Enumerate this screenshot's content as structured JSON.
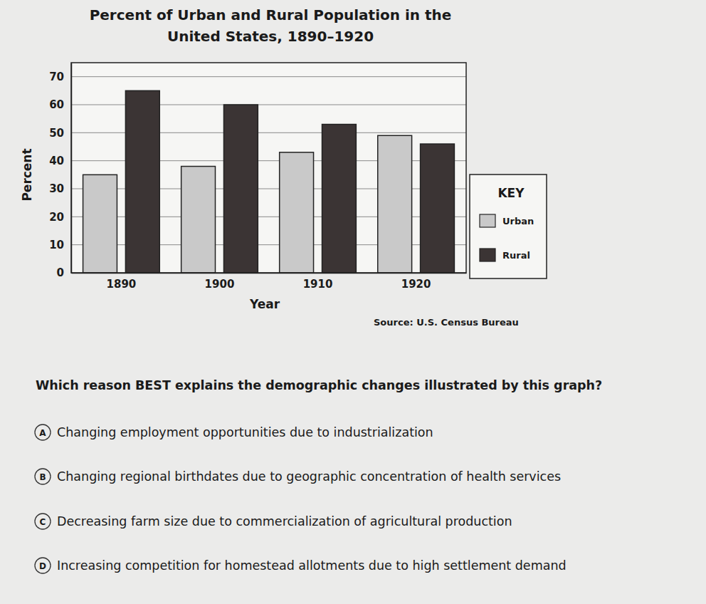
{
  "chart_data": {
    "type": "bar",
    "title": [
      "Percent of Urban and Rural Population in the",
      "United States, 1890–1920"
    ],
    "x_label": "Year",
    "y_label": "Percent",
    "categories": [
      "1890",
      "1900",
      "1910",
      "1920"
    ],
    "series": [
      {
        "name": "Urban",
        "color": "#c9c9c9",
        "values": [
          35,
          38,
          43,
          49
        ]
      },
      {
        "name": "Rural",
        "color": "#3b3434",
        "values": [
          65,
          60,
          53,
          46
        ]
      }
    ],
    "ylim": [
      0,
      75
    ],
    "yticks": [
      0,
      10,
      20,
      30,
      40,
      50,
      60,
      70
    ],
    "grid": true,
    "legend": "right",
    "legend_title": "KEY",
    "source": "Source: U.S. Census Bureau"
  },
  "question": "Which reason BEST explains the demographic changes illustrated by this graph?",
  "options": [
    {
      "letter": "A",
      "text": "Changing employment opportunities due to industrialization"
    },
    {
      "letter": "B",
      "text": "Changing regional birthdates due to geographic concentration of health services"
    },
    {
      "letter": "C",
      "text": "Decreasing farm size due to commercialization of agricultural production"
    },
    {
      "letter": "D",
      "text": "Increasing competition for homestead allotments due to high settlement demand"
    }
  ]
}
